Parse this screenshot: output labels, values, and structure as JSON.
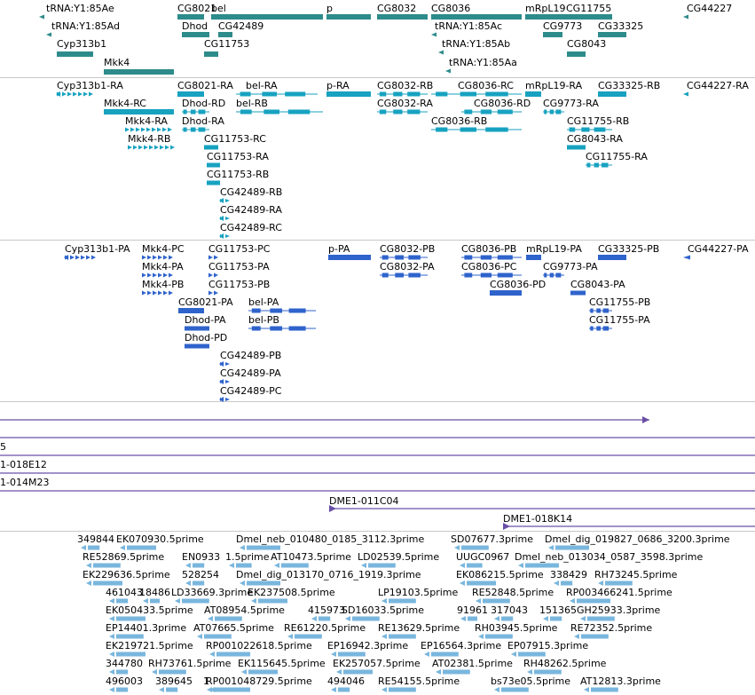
{
  "colors": {
    "genes": "#2e8b8b",
    "transcripts": "#17a2c0",
    "proteins": "#2f63cc",
    "clones": "#6a4fa6",
    "ests": "#79b6dd",
    "divider": "#c8c8c8"
  },
  "tracks": {
    "genes": {
      "features": [
        {
          "id": "tRNA:Y1:85Ae",
          "label": "tRNA:Y1:85Ae",
          "strand": "-"
        },
        {
          "id": "tRNA:Y1:85Ad",
          "label": "tRNA:Y1:85Ad",
          "strand": "-"
        },
        {
          "id": "Cyp313b1",
          "label": "Cyp313b1",
          "strand": "-"
        },
        {
          "id": "Mkk4",
          "label": "Mkk4",
          "strand": "+"
        },
        {
          "id": "CG8021",
          "label": "CG8021",
          "strand": "-"
        },
        {
          "id": "Dhod",
          "label": "Dhod",
          "strand": "+"
        },
        {
          "id": "CG11753",
          "label": "CG11753",
          "strand": "+"
        },
        {
          "id": "CG42489",
          "label": "CG42489",
          "strand": "-"
        },
        {
          "id": "bel",
          "label": "bel",
          "strand": "+"
        },
        {
          "id": "p",
          "label": "p",
          "strand": "+"
        },
        {
          "id": "CG8032",
          "label": "CG8032",
          "strand": "+"
        },
        {
          "id": "CG8036",
          "label": "CG8036",
          "strand": "+"
        },
        {
          "id": "tRNA:Y1:85Ac",
          "label": "tRNA:Y1:85Ac",
          "strand": "-"
        },
        {
          "id": "tRNA:Y1:85Ab",
          "label": "tRNA:Y1:85Ab",
          "strand": "-"
        },
        {
          "id": "tRNA:Y1:85Aa",
          "label": "tRNA:Y1:85Aa",
          "strand": "-"
        },
        {
          "id": "mRpL19",
          "label": "mRpL19",
          "strand": "+"
        },
        {
          "id": "CG9773",
          "label": "CG9773",
          "strand": "+"
        },
        {
          "id": "CG8043",
          "label": "CG8043",
          "strand": "+"
        },
        {
          "id": "CG11755",
          "label": "CG11755",
          "strand": "+"
        },
        {
          "id": "CG33325",
          "label": "CG33325",
          "strand": "+"
        },
        {
          "id": "CG44227",
          "label": "CG44227",
          "strand": "-"
        }
      ]
    },
    "transcripts": {
      "features": [
        {
          "id": "Cyp313b1-RA",
          "label": "Cyp313b1-RA",
          "strand": "-"
        },
        {
          "id": "Mkk4-RC",
          "label": "Mkk4-RC",
          "strand": "+"
        },
        {
          "id": "Mkk4-RA",
          "label": "Mkk4-RA",
          "strand": "+"
        },
        {
          "id": "Mkk4-RB",
          "label": "Mkk4-RB",
          "strand": "+"
        },
        {
          "id": "CG8021-RA",
          "label": "CG8021-RA",
          "strand": "-"
        },
        {
          "id": "Dhod-RD",
          "label": "Dhod-RD",
          "strand": "+"
        },
        {
          "id": "Dhod-RA",
          "label": "Dhod-RA",
          "strand": "+"
        },
        {
          "id": "CG11753-RC",
          "label": "CG11753-RC",
          "strand": "+"
        },
        {
          "id": "CG11753-RA",
          "label": "CG11753-RA",
          "strand": "+"
        },
        {
          "id": "CG11753-RB",
          "label": "CG11753-RB",
          "strand": "+"
        },
        {
          "id": "CG42489-RB",
          "label": "CG42489-RB",
          "strand": "-"
        },
        {
          "id": "CG42489-RA",
          "label": "CG42489-RA",
          "strand": "-"
        },
        {
          "id": "CG42489-RC",
          "label": "CG42489-RC",
          "strand": "-"
        },
        {
          "id": "bel-RA",
          "label": "bel-RA",
          "strand": "+"
        },
        {
          "id": "bel-RB",
          "label": "bel-RB",
          "strand": "+"
        },
        {
          "id": "p-RA",
          "label": "p-RA",
          "strand": "+"
        },
        {
          "id": "CG8032-RB",
          "label": "CG8032-RB",
          "strand": "+"
        },
        {
          "id": "CG8032-RA",
          "label": "CG8032-RA",
          "strand": "+"
        },
        {
          "id": "CG8036-RC",
          "label": "CG8036-RC",
          "strand": "+"
        },
        {
          "id": "CG8036-RD",
          "label": "CG8036-RD",
          "strand": "+"
        },
        {
          "id": "CG8036-RB",
          "label": "CG8036-RB",
          "strand": "+"
        },
        {
          "id": "mRpL19-RA",
          "label": "mRpL19-RA",
          "strand": "+"
        },
        {
          "id": "CG9773-RA",
          "label": "CG9773-RA",
          "strand": "+"
        },
        {
          "id": "CG11755-RB",
          "label": "CG11755-RB",
          "strand": "+"
        },
        {
          "id": "CG8043-RA",
          "label": "CG8043-RA",
          "strand": "+"
        },
        {
          "id": "CG11755-RA",
          "label": "CG11755-RA",
          "strand": "+"
        },
        {
          "id": "CG33325-RB",
          "label": "CG33325-RB",
          "strand": "+"
        },
        {
          "id": "CG44227-RA",
          "label": "CG44227-RA",
          "strand": "-"
        }
      ]
    },
    "proteins": {
      "features": [
        {
          "id": "Cyp313b1-PA",
          "label": "Cyp313b1-PA",
          "strand": "-"
        },
        {
          "id": "Mkk4-PC",
          "label": "Mkk4-PC",
          "strand": "+"
        },
        {
          "id": "Mkk4-PA",
          "label": "Mkk4-PA",
          "strand": "+"
        },
        {
          "id": "Mkk4-PB",
          "label": "Mkk4-PB",
          "strand": "+"
        },
        {
          "id": "CG8021-PA",
          "label": "CG8021-PA",
          "strand": "-"
        },
        {
          "id": "Dhod-PA",
          "label": "Dhod-PA",
          "strand": "+"
        },
        {
          "id": "Dhod-PD",
          "label": "Dhod-PD",
          "strand": "+"
        },
        {
          "id": "CG11753-PC",
          "label": "CG11753-PC",
          "strand": "+"
        },
        {
          "id": "CG11753-PA",
          "label": "CG11753-PA",
          "strand": "+"
        },
        {
          "id": "CG11753-PB",
          "label": "CG11753-PB",
          "strand": "+"
        },
        {
          "id": "bel-PA",
          "label": "bel-PA",
          "strand": "+"
        },
        {
          "id": "bel-PB",
          "label": "bel-PB",
          "strand": "+"
        },
        {
          "id": "CG42489-PB",
          "label": "CG42489-PB",
          "strand": "-"
        },
        {
          "id": "CG42489-PA",
          "label": "CG42489-PA",
          "strand": "-"
        },
        {
          "id": "CG42489-PC",
          "label": "CG42489-PC",
          "strand": "-"
        },
        {
          "id": "p-PA",
          "label": "p-PA",
          "strand": "+"
        },
        {
          "id": "CG8032-PB",
          "label": "CG8032-PB",
          "strand": "+"
        },
        {
          "id": "CG8032-PA",
          "label": "CG8032-PA",
          "strand": "+"
        },
        {
          "id": "CG8036-PB",
          "label": "CG8036-PB",
          "strand": "+"
        },
        {
          "id": "CG8036-PC",
          "label": "CG8036-PC",
          "strand": "+"
        },
        {
          "id": "CG8036-PD",
          "label": "CG8036-PD",
          "strand": "+"
        },
        {
          "id": "mRpL19-PA",
          "label": "mRpL19-PA",
          "strand": "+"
        },
        {
          "id": "CG9773-PA",
          "label": "CG9773-PA",
          "strand": "+"
        },
        {
          "id": "CG8043-PA",
          "label": "CG8043-PA",
          "strand": "+"
        },
        {
          "id": "CG11755-PB",
          "label": "CG11755-PB",
          "strand": "+"
        },
        {
          "id": "CG11755-PA",
          "label": "CG11755-PA",
          "strand": "+"
        },
        {
          "id": "CG33325-PB",
          "label": "CG33325-PB",
          "strand": "+"
        },
        {
          "id": "CG44227-PA",
          "label": "CG44227-PA",
          "strand": "-"
        }
      ]
    },
    "clones": {
      "features": [
        {
          "id": "clone-1",
          "label": "",
          "strand": "+"
        },
        {
          "id": "clone-2",
          "label": "5",
          "strand": "+"
        },
        {
          "id": "clone-3",
          "label": "1-018E12",
          "strand": "+"
        },
        {
          "id": "clone-4",
          "label": "1-014M23",
          "strand": "+"
        },
        {
          "id": "clone-5",
          "label": "",
          "strand": "+"
        },
        {
          "id": "DME1-011C04",
          "label": "DME1-011C04",
          "strand": "+"
        },
        {
          "id": "DME1-018K14",
          "label": "DME1-018K14",
          "strand": "+"
        }
      ]
    },
    "ests": {
      "features": [
        {
          "id": "e01",
          "label": "349844",
          "strand": "-"
        },
        {
          "id": "e02",
          "label": "EK070930.5prime",
          "strand": "-"
        },
        {
          "id": "e03",
          "label": "Dmel_neb_010480_0185_3112.3prime",
          "strand": "-"
        },
        {
          "id": "e04",
          "label": "SD07677.3prime",
          "strand": "-"
        },
        {
          "id": "e05",
          "label": "Dmel_dig_019827_0686_3200.3prime",
          "strand": "-"
        },
        {
          "id": "e06",
          "label": "RE52869.5prime",
          "strand": "-"
        },
        {
          "id": "e07",
          "label": "EN0933",
          "strand": "-"
        },
        {
          "id": "e08",
          "label": "1.5prime",
          "strand": "-"
        },
        {
          "id": "e09",
          "label": "AT10473.5prime",
          "strand": "-"
        },
        {
          "id": "e10",
          "label": "LD02539.5prime",
          "strand": "-"
        },
        {
          "id": "e11",
          "label": "UUGC0967",
          "strand": "-"
        },
        {
          "id": "e12",
          "label": "Dmel_neb_013034_0587_3598.3prime",
          "strand": "-"
        },
        {
          "id": "e13",
          "label": "EK229636.5prime",
          "strand": "-"
        },
        {
          "id": "e14",
          "label": "528254",
          "strand": "-"
        },
        {
          "id": "e15",
          "label": "Dmel_dig_013170_0716_1919.3prime",
          "strand": "-"
        },
        {
          "id": "e16",
          "label": "EK086215.5prime",
          "strand": "-"
        },
        {
          "id": "e17",
          "label": "338429",
          "strand": "-"
        },
        {
          "id": "e18",
          "label": "RH73245.5prime",
          "strand": "-"
        },
        {
          "id": "e19",
          "label": "461043",
          "strand": "-"
        },
        {
          "id": "e20",
          "label": "18486",
          "strand": "-"
        },
        {
          "id": "e21",
          "label": "LD33669.3prime",
          "strand": "-"
        },
        {
          "id": "e22",
          "label": "EK237508.5prime",
          "strand": "-"
        },
        {
          "id": "e23",
          "label": "LP19103.5prime",
          "strand": "-"
        },
        {
          "id": "e24",
          "label": "RE52848.5prime",
          "strand": "-"
        },
        {
          "id": "e25",
          "label": "RP003466241.5prime",
          "strand": "-"
        },
        {
          "id": "e26",
          "label": "EK050433.5prime",
          "strand": "-"
        },
        {
          "id": "e27",
          "label": "AT08954.5prime",
          "strand": "-"
        },
        {
          "id": "e28",
          "label": "415973",
          "strand": "-"
        },
        {
          "id": "e29",
          "label": "SD16033.5prime",
          "strand": "-"
        },
        {
          "id": "e30",
          "label": "91961",
          "strand": "-"
        },
        {
          "id": "e31",
          "label": "317043",
          "strand": "-"
        },
        {
          "id": "e32",
          "label": "151365",
          "strand": "-"
        },
        {
          "id": "e33",
          "label": "GH25933.3prime",
          "strand": "-"
        },
        {
          "id": "e34",
          "label": "EP14401.3prime",
          "strand": "-"
        },
        {
          "id": "e35",
          "label": "AT07665.5prime",
          "strand": "-"
        },
        {
          "id": "e36",
          "label": "RE61220.5prime",
          "strand": "-"
        },
        {
          "id": "e37",
          "label": "RE13629.5prime",
          "strand": "-"
        },
        {
          "id": "e38",
          "label": "RH03945.5prime",
          "strand": "-"
        },
        {
          "id": "e39",
          "label": "RE72352.5prime",
          "strand": "-"
        },
        {
          "id": "e40",
          "label": "EK219721.5prime",
          "strand": "-"
        },
        {
          "id": "e41",
          "label": "RP001022618.5prime",
          "strand": "-"
        },
        {
          "id": "e42",
          "label": "EP16942.3prime",
          "strand": "-"
        },
        {
          "id": "e43",
          "label": "EP16564.3prime",
          "strand": "-"
        },
        {
          "id": "e44",
          "label": "EP07915.3prime",
          "strand": "-"
        },
        {
          "id": "e45",
          "label": "344780",
          "strand": "-"
        },
        {
          "id": "e46",
          "label": "RH73761.5prime",
          "strand": "-"
        },
        {
          "id": "e47",
          "label": "EK115645.5prime",
          "strand": "-"
        },
        {
          "id": "e48",
          "label": "EK257057.5prime",
          "strand": "-"
        },
        {
          "id": "e49",
          "label": "AT02381.5prime",
          "strand": "-"
        },
        {
          "id": "e50",
          "label": "RH48262.5prime",
          "strand": "-"
        },
        {
          "id": "e51",
          "label": "496003",
          "strand": "-"
        },
        {
          "id": "e52",
          "label": "389645",
          "strand": "-"
        },
        {
          "id": "e53",
          "label": "1",
          "strand": "-"
        },
        {
          "id": "e54",
          "label": "RP001048729.5prime",
          "strand": "-"
        },
        {
          "id": "e55",
          "label": "494046",
          "strand": "-"
        },
        {
          "id": "e56",
          "label": "RE54155.5prime",
          "strand": "-"
        },
        {
          "id": "e57",
          "label": "bs73e05.5prime",
          "strand": "-"
        },
        {
          "id": "e58",
          "label": "AT12813.3prime",
          "strand": "-"
        }
      ]
    }
  }
}
